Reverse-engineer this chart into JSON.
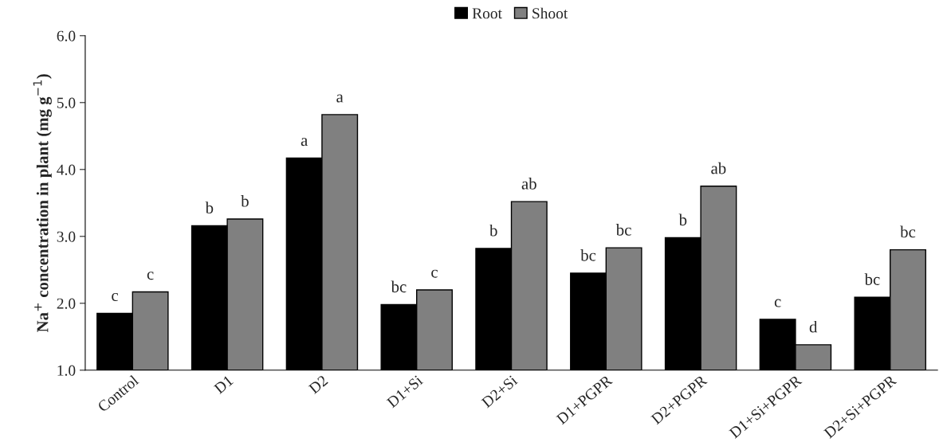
{
  "chart_data": {
    "type": "bar",
    "ylabel": "Na$^{+}$ concentration in plant (mg g$^{−1}$)",
    "categories": [
      "Control",
      "D1",
      "D2",
      "D1+Si",
      "D2+Si",
      "D1+PGPR",
      "D2+PGPR",
      "D1+Si+PGPR",
      "D2+Si+PGPR"
    ],
    "series": [
      {
        "name": "Root",
        "color": "#000000",
        "values": [
          1.85,
          3.16,
          4.17,
          1.98,
          2.82,
          2.45,
          2.98,
          1.76,
          2.09
        ],
        "value_labels": [
          "c",
          "b",
          "a",
          "bc",
          "b",
          "bc",
          "b",
          "c",
          "bc"
        ]
      },
      {
        "name": "Shoot",
        "color": "#808080",
        "values": [
          2.17,
          3.26,
          4.82,
          2.2,
          3.52,
          2.83,
          3.75,
          1.38,
          2.8
        ],
        "value_labels": [
          "c",
          "b",
          "a",
          "c",
          "ab",
          "bc",
          "ab",
          "d",
          "bc"
        ]
      }
    ],
    "ylim": [
      1,
      6
    ],
    "yticks": [
      {
        "value": 1,
        "label": "1.0"
      },
      {
        "value": 2,
        "label": "2.0"
      },
      {
        "value": 3,
        "label": "3.0"
      },
      {
        "value": 4,
        "label": "4.0"
      },
      {
        "value": 5,
        "label": "5.0"
      },
      {
        "value": 6,
        "label": "6.0"
      }
    ],
    "legend": "top",
    "grid": false
  }
}
